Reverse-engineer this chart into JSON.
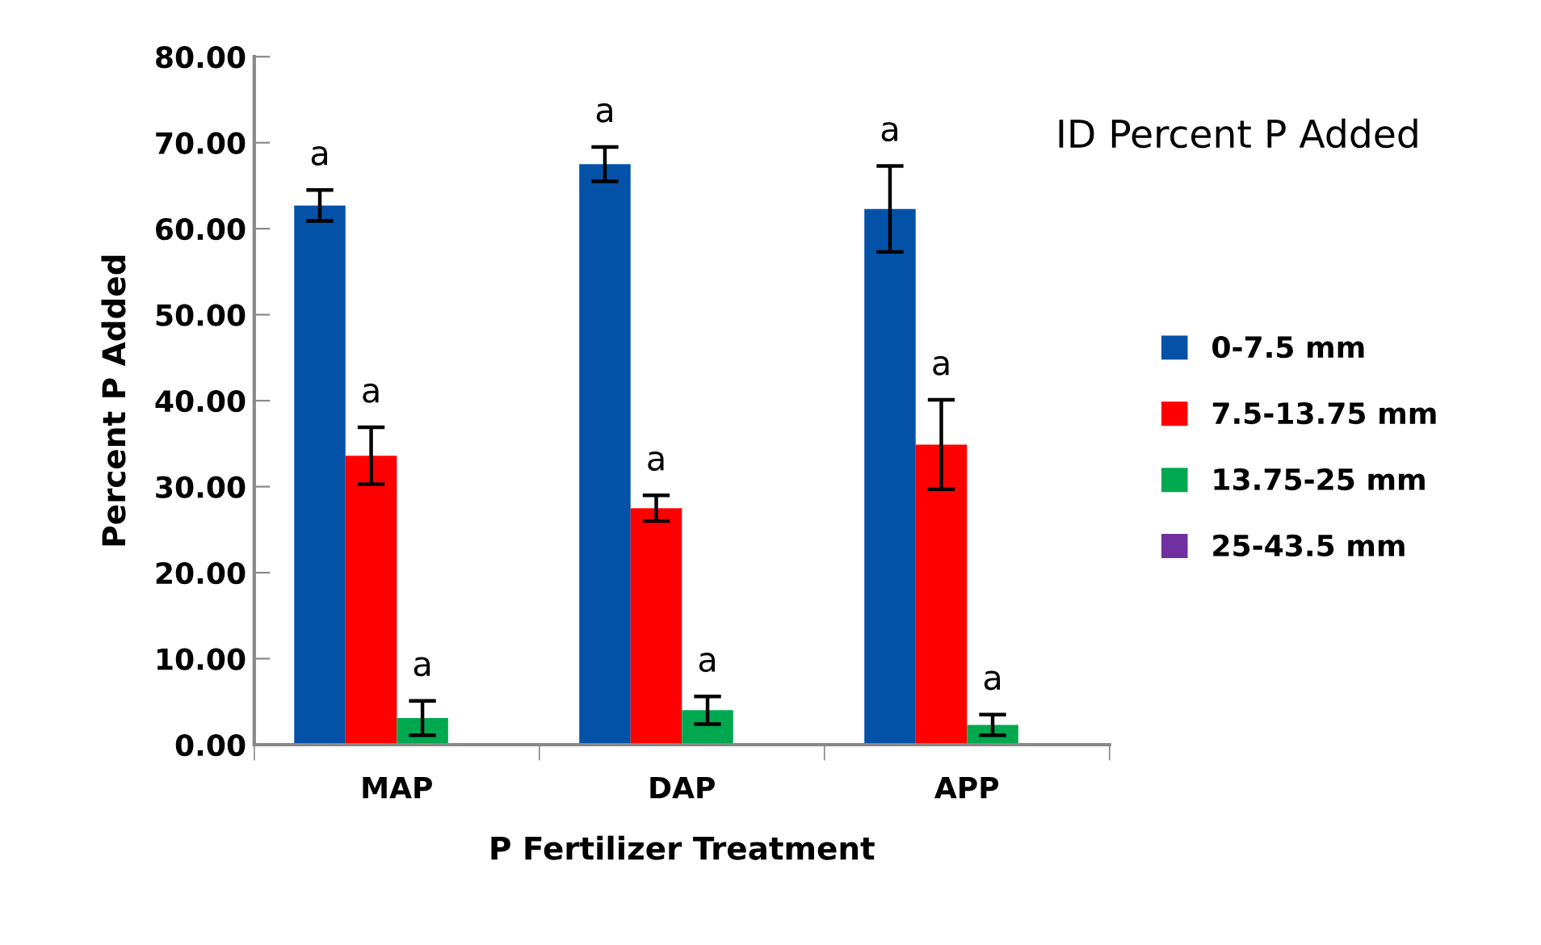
{
  "chart_data": {
    "type": "bar",
    "xlabel": "P Fertilizer Treatment",
    "ylabel": "Percent P Added",
    "categories": [
      "MAP",
      "DAP",
      "APP"
    ],
    "series": [
      {
        "name": "0-7.5 mm",
        "color": "#0451a8",
        "values": [
          62.7,
          67.5,
          62.3
        ],
        "errors": [
          1.8,
          2.0,
          5.0
        ]
      },
      {
        "name": "7.5-13.75 mm",
        "color": "#ff0000",
        "values": [
          33.6,
          27.5,
          34.9
        ],
        "errors": [
          3.3,
          1.5,
          5.2
        ]
      },
      {
        "name": "13.75-25 mm",
        "color": "#00a850",
        "values": [
          3.1,
          4.0,
          2.3
        ],
        "errors": [
          2.0,
          1.6,
          1.2
        ]
      },
      {
        "name": "25-43.5 mm",
        "color": "#7030a0",
        "values": [
          null,
          null,
          null
        ]
      }
    ],
    "ylim": [
      0,
      80
    ],
    "yticks": [
      {
        "value": 0,
        "label": "0.00"
      },
      {
        "value": 10,
        "label": "10.00"
      },
      {
        "value": 20,
        "label": "20.00"
      },
      {
        "value": 30,
        "label": "30.00"
      },
      {
        "value": 40,
        "label": "40.00"
      },
      {
        "value": 50,
        "label": "50.00"
      },
      {
        "value": 60,
        "label": "60.00"
      },
      {
        "value": 70,
        "label": "70.00"
      },
      {
        "value": 80,
        "label": "80.00"
      }
    ],
    "annotations": [
      "a",
      "a",
      "a",
      "a",
      "a",
      "a",
      "a",
      "a",
      "a"
    ],
    "title": "ID Percent P Added",
    "legend": "right",
    "grid": false
  }
}
